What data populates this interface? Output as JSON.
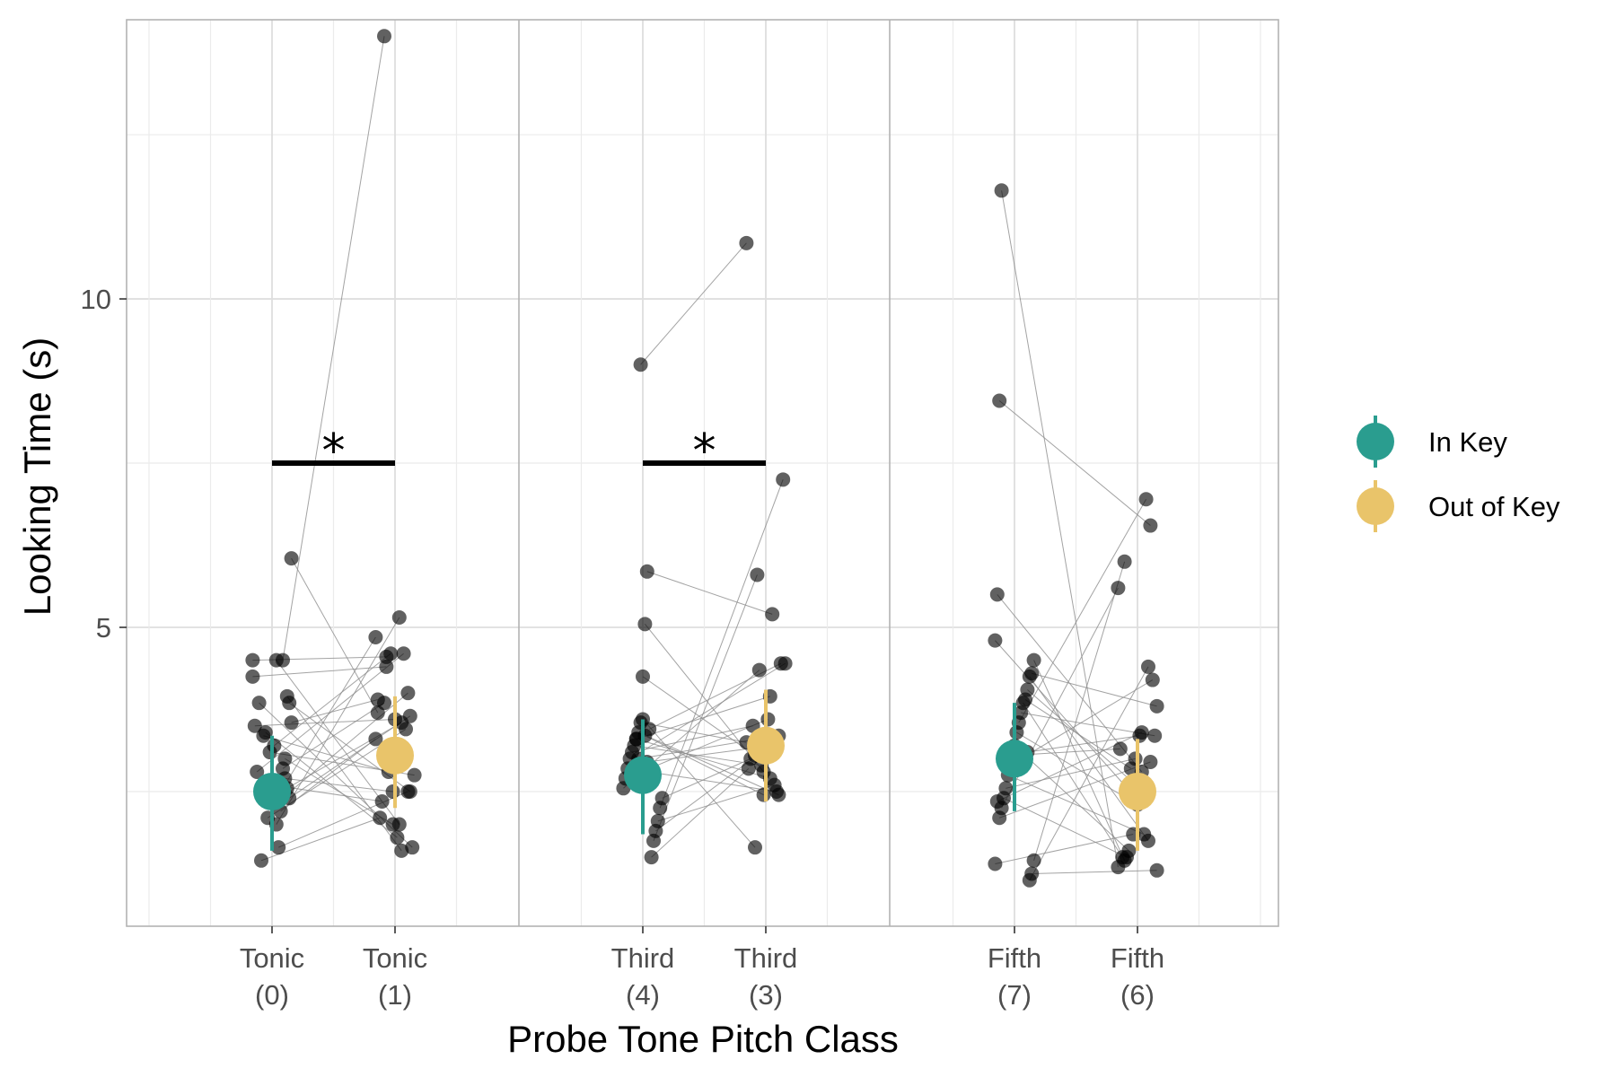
{
  "chart_data": {
    "type": "scatter",
    "xlabel": "Probe Tone Pitch Class",
    "ylabel": "Looking Time (s)",
    "ylim": [
      0.45,
      14.25
    ],
    "y_ticks": [
      5,
      10
    ],
    "grid": true,
    "legend_position": "right",
    "panels": [
      {
        "x_tick_labels": [
          {
            "top": "Tonic",
            "bottom": "(0)"
          },
          {
            "top": "Tonic",
            "bottom": "(1)"
          }
        ],
        "significance_label": "*",
        "significance_y": 7.5,
        "means": {
          "in_key": 2.5,
          "out_of_key": 3.05
        },
        "error": {
          "in_key": [
            1.6,
            3.35
          ],
          "out_of_key": [
            2.25,
            3.95
          ]
        },
        "participants": [
          [
            4.5,
            4.55
          ],
          [
            6.05,
            3.7
          ],
          [
            3.85,
            2.5
          ],
          [
            2.55,
            3.55
          ],
          [
            3.0,
            2.0
          ],
          [
            2.85,
            3.85
          ],
          [
            2.2,
            3.3
          ],
          [
            1.65,
            2.5
          ],
          [
            4.5,
            2.0
          ],
          [
            3.2,
            4.6
          ],
          [
            2.6,
            2.35
          ],
          [
            3.1,
            2.75
          ],
          [
            2.1,
            3.45
          ],
          [
            3.4,
            1.8
          ],
          [
            3.35,
            2.8
          ],
          [
            1.45,
            2.1
          ],
          [
            3.85,
            1.65
          ],
          [
            2.8,
            4.6
          ],
          [
            3.5,
            3.6
          ],
          [
            4.25,
            4.4
          ],
          [
            3.55,
            3.9
          ],
          [
            2.4,
            3.65
          ],
          [
            3.95,
            1.6
          ],
          [
            2.7,
            2.5
          ],
          [
            4.5,
            14.0
          ],
          [
            2.5,
            4.85
          ],
          [
            2.35,
            4.0
          ],
          [
            2.0,
            5.15
          ]
        ]
      },
      {
        "x_tick_labels": [
          {
            "top": "Third",
            "bottom": "(4)"
          },
          {
            "top": "Third",
            "bottom": "(3)"
          }
        ],
        "significance_label": "*",
        "significance_y": 7.5,
        "means": {
          "in_key": 2.75,
          "out_of_key": 3.2
        },
        "error": {
          "in_key": [
            1.85,
            3.6
          ],
          "out_of_key": [
            2.35,
            4.05
          ]
        },
        "participants": [
          [
            5.85,
            5.2
          ],
          [
            5.05,
            2.8
          ],
          [
            4.25,
            3.05
          ],
          [
            3.55,
            3.25
          ],
          [
            3.4,
            2.45
          ],
          [
            3.3,
            3.95
          ],
          [
            3.2,
            2.9
          ],
          [
            3.1,
            3.5
          ],
          [
            3.0,
            4.45
          ],
          [
            2.85,
            2.5
          ],
          [
            2.7,
            3.6
          ],
          [
            2.55,
            4.35
          ],
          [
            2.4,
            3.0
          ],
          [
            2.25,
            7.25
          ],
          [
            2.05,
            2.6
          ],
          [
            1.9,
            3.15
          ],
          [
            1.75,
            5.8
          ],
          [
            1.5,
            2.85
          ],
          [
            3.45,
            4.45
          ],
          [
            2.95,
            3.2
          ],
          [
            3.35,
            2.45
          ],
          [
            3.6,
            1.65
          ],
          [
            9.0,
            10.85
          ],
          [
            3.0,
            3.35
          ],
          [
            3.3,
            2.7
          ]
        ]
      },
      {
        "x_tick_labels": [
          {
            "top": "Fifth",
            "bottom": "(7)"
          },
          {
            "top": "Fifth",
            "bottom": "(6)"
          }
        ],
        "significance_label": "",
        "means": {
          "in_key": 3.0,
          "out_of_key": 2.5
        },
        "error": {
          "in_key": [
            2.2,
            3.85
          ],
          "out_of_key": [
            1.6,
            3.3
          ]
        },
        "participants": [
          [
            11.65,
            1.35
          ],
          [
            8.45,
            6.55
          ],
          [
            5.5,
            2.8
          ],
          [
            4.8,
            2.45
          ],
          [
            4.5,
            1.45
          ],
          [
            4.3,
            3.8
          ],
          [
            4.25,
            1.75
          ],
          [
            4.05,
            2.55
          ],
          [
            3.9,
            2.85
          ],
          [
            3.85,
            1.5
          ],
          [
            3.7,
            3.35
          ],
          [
            3.55,
            6.95
          ],
          [
            3.4,
            2.3
          ],
          [
            3.2,
            1.6
          ],
          [
            3.05,
            3.15
          ],
          [
            2.9,
            4.2
          ],
          [
            2.75,
            1.85
          ],
          [
            2.55,
            3.0
          ],
          [
            2.4,
            1.5
          ],
          [
            2.25,
            5.6
          ],
          [
            2.1,
            2.95
          ],
          [
            2.35,
            3.4
          ],
          [
            1.4,
            1.85
          ],
          [
            1.45,
            6.0
          ],
          [
            1.25,
            1.3
          ],
          [
            1.15,
            4.4
          ],
          [
            3.1,
            3.35
          ]
        ]
      }
    ],
    "series": [
      {
        "name": "In Key",
        "color": "#2a9d8f"
      },
      {
        "name": "Out of Key",
        "color": "#e9c46a"
      }
    ]
  }
}
